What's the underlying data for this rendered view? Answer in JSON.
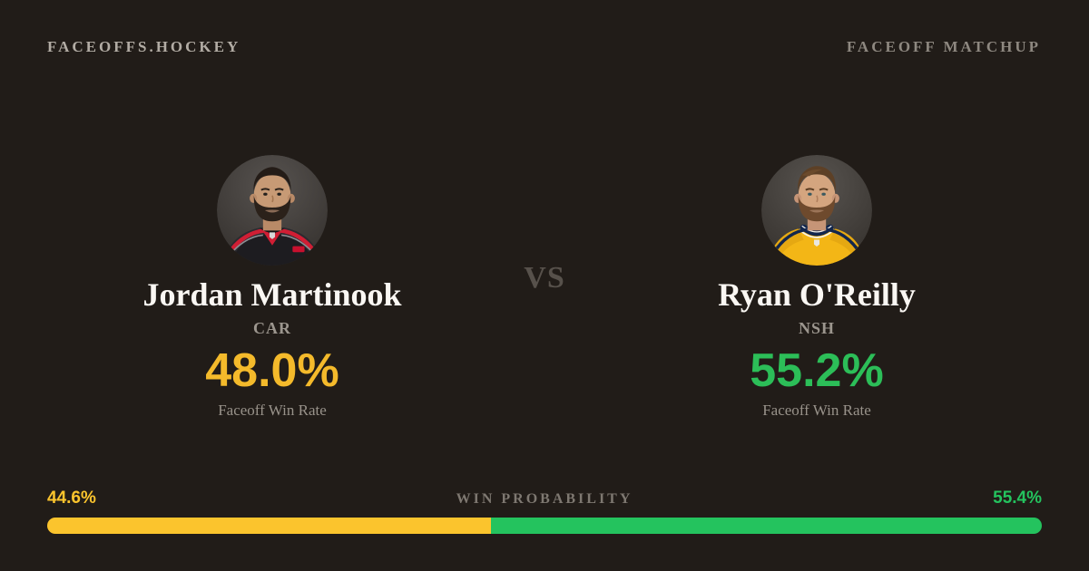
{
  "header": {
    "brand": "FACEOFFS.HOCKEY",
    "page_label": "FACEOFF MATCHUP"
  },
  "matchup": {
    "vs_label": "VS",
    "left": {
      "name": "Jordan Martinook",
      "team": "CAR",
      "win_rate": "48.0%",
      "stat_label": "Faceoff Win Rate",
      "accent_color": "#f4ba2b",
      "avatar": "jordan-martinook-headshot"
    },
    "right": {
      "name": "Ryan O'Reilly",
      "team": "NSH",
      "win_rate": "55.2%",
      "stat_label": "Faceoff Win Rate",
      "accent_color": "#2cbe58",
      "avatar": "ryan-oreilly-headshot"
    }
  },
  "win_probability": {
    "title": "WIN PROBABILITY",
    "left_pct_label": "44.6%",
    "right_pct_label": "55.4%",
    "left_value": 44.6,
    "right_value": 55.4,
    "left_color": "#fbc42d",
    "right_color": "#24c35e"
  },
  "colors": {
    "background": "#211c18",
    "heading_text": "#faf7f3",
    "muted_text": "#98928a"
  }
}
